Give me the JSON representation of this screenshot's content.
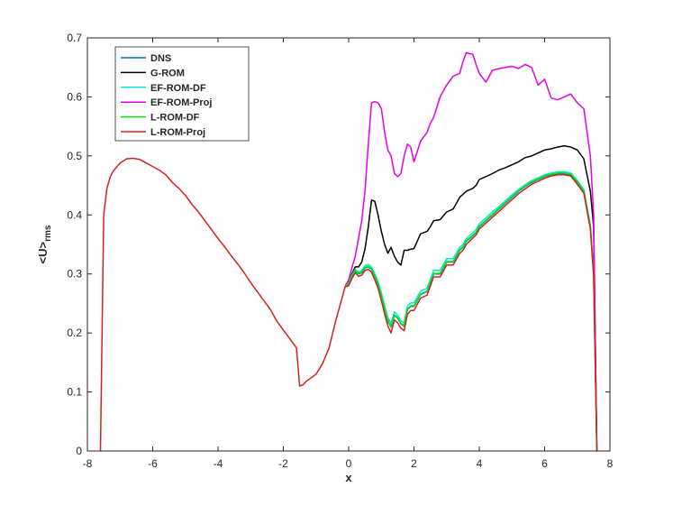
{
  "chart_data": {
    "type": "line",
    "title": "",
    "xlabel": "x",
    "ylabel": {
      "main": "<U>",
      "sub": "rms"
    },
    "xlim": [
      -8,
      8
    ],
    "ylim": [
      0,
      0.7
    ],
    "xticks": [
      -8,
      -6,
      -4,
      -2,
      0,
      2,
      4,
      6,
      8
    ],
    "yticks": [
      0,
      0.1,
      0.2,
      0.3,
      0.4,
      0.5,
      0.6,
      0.7
    ],
    "xtick_labels": [
      "-8",
      "-6",
      "-4",
      "-2",
      "0",
      "2",
      "4",
      "6",
      "8"
    ],
    "ytick_labels": [
      "0",
      "0.1",
      "0.2",
      "0.3",
      "0.4",
      "0.5",
      "0.6",
      "0.7"
    ],
    "grid": false,
    "legend_position": "top-left",
    "common": {
      "x": [
        -7.6,
        -7.5,
        -7.4,
        -7.3,
        -7.2,
        -7.0,
        -6.8,
        -6.6,
        -6.4,
        -6.2,
        -6.0,
        -5.8,
        -5.6,
        -5.4,
        -5.2,
        -5.0,
        -4.8,
        -4.6,
        -4.4,
        -4.2,
        -4.0,
        -3.8,
        -3.6,
        -3.4,
        -3.2,
        -3.0,
        -2.8,
        -2.6,
        -2.4,
        -2.2,
        -2.0,
        -1.8,
        -1.6,
        -1.5,
        -1.4,
        -1.3,
        -1.2,
        -1.0,
        -0.8,
        -0.6,
        -0.4,
        -0.2,
        -0.1
      ],
      "y": [
        0.0,
        0.4,
        0.445,
        0.465,
        0.475,
        0.488,
        0.495,
        0.496,
        0.494,
        0.488,
        0.482,
        0.476,
        0.468,
        0.455,
        0.445,
        0.433,
        0.418,
        0.405,
        0.39,
        0.375,
        0.36,
        0.346,
        0.331,
        0.317,
        0.302,
        0.285,
        0.27,
        0.255,
        0.24,
        0.22,
        0.205,
        0.19,
        0.175,
        0.11,
        0.112,
        0.118,
        0.122,
        0.13,
        0.148,
        0.175,
        0.22,
        0.26,
        0.28
      ]
    },
    "x": [
      -0.1,
      0.0,
      0.1,
      0.2,
      0.3,
      0.4,
      0.5,
      0.6,
      0.7,
      0.8,
      0.9,
      1.0,
      1.1,
      1.2,
      1.3,
      1.4,
      1.5,
      1.6,
      1.7,
      1.8,
      1.9,
      2.0,
      2.2,
      2.4,
      2.5,
      2.6,
      2.8,
      3.0,
      3.2,
      3.4,
      3.5,
      3.6,
      3.8,
      3.9,
      4.0,
      4.2,
      4.4,
      4.6,
      4.8,
      5.0,
      5.2,
      5.4,
      5.6,
      5.8,
      6.0,
      6.2,
      6.4,
      6.6,
      6.8,
      7.0,
      7.2,
      7.4,
      7.5,
      7.6
    ],
    "series": [
      {
        "name": "DNS",
        "color": "#0072bd",
        "values": [
          0.28,
          0.283,
          0.295,
          0.305,
          0.3,
          0.302,
          0.31,
          0.312,
          0.308,
          0.296,
          0.282,
          0.262,
          0.24,
          0.22,
          0.21,
          0.23,
          0.225,
          0.215,
          0.212,
          0.24,
          0.245,
          0.245,
          0.265,
          0.27,
          0.285,
          0.3,
          0.3,
          0.32,
          0.32,
          0.34,
          0.345,
          0.355,
          0.365,
          0.37,
          0.38,
          0.39,
          0.4,
          0.41,
          0.42,
          0.43,
          0.44,
          0.448,
          0.455,
          0.46,
          0.465,
          0.468,
          0.47,
          0.47,
          0.468,
          0.455,
          0.44,
          0.38,
          0.3,
          0.0
        ]
      },
      {
        "name": "G-ROM",
        "color": "#000000",
        "values": [
          0.28,
          0.285,
          0.3,
          0.312,
          0.312,
          0.32,
          0.342,
          0.38,
          0.425,
          0.423,
          0.4,
          0.372,
          0.35,
          0.335,
          0.345,
          0.33,
          0.32,
          0.315,
          0.34,
          0.34,
          0.342,
          0.343,
          0.368,
          0.372,
          0.38,
          0.39,
          0.392,
          0.405,
          0.41,
          0.43,
          0.435,
          0.44,
          0.445,
          0.45,
          0.46,
          0.465,
          0.47,
          0.476,
          0.48,
          0.485,
          0.49,
          0.497,
          0.5,
          0.505,
          0.51,
          0.512,
          0.515,
          0.517,
          0.515,
          0.51,
          0.495,
          0.44,
          0.38,
          0.0
        ]
      },
      {
        "name": "EF-ROM-DF",
        "color": "#00e5e5",
        "values": [
          0.282,
          0.285,
          0.298,
          0.308,
          0.303,
          0.306,
          0.314,
          0.316,
          0.312,
          0.3,
          0.287,
          0.268,
          0.246,
          0.226,
          0.216,
          0.236,
          0.23,
          0.22,
          0.218,
          0.246,
          0.251,
          0.251,
          0.271,
          0.276,
          0.29,
          0.306,
          0.306,
          0.326,
          0.326,
          0.345,
          0.35,
          0.36,
          0.37,
          0.375,
          0.385,
          0.395,
          0.405,
          0.414,
          0.424,
          0.434,
          0.443,
          0.451,
          0.458,
          0.463,
          0.468,
          0.471,
          0.473,
          0.473,
          0.471,
          0.458,
          0.443,
          0.383,
          0.303,
          0.0
        ]
      },
      {
        "name": "EF-ROM-Proj",
        "color": "#e600e6",
        "values": [
          0.28,
          0.29,
          0.31,
          0.33,
          0.36,
          0.39,
          0.44,
          0.52,
          0.59,
          0.592,
          0.59,
          0.58,
          0.54,
          0.51,
          0.5,
          0.47,
          0.465,
          0.47,
          0.5,
          0.52,
          0.515,
          0.49,
          0.525,
          0.54,
          0.555,
          0.565,
          0.6,
          0.62,
          0.635,
          0.64,
          0.66,
          0.675,
          0.672,
          0.655,
          0.64,
          0.625,
          0.645,
          0.648,
          0.65,
          0.652,
          0.648,
          0.655,
          0.65,
          0.62,
          0.63,
          0.598,
          0.595,
          0.6,
          0.605,
          0.59,
          0.58,
          0.5,
          0.4,
          0.0
        ]
      },
      {
        "name": "L-ROM-DF",
        "color": "#00e600",
        "values": [
          0.28,
          0.283,
          0.296,
          0.306,
          0.301,
          0.303,
          0.311,
          0.313,
          0.309,
          0.297,
          0.283,
          0.263,
          0.241,
          0.221,
          0.211,
          0.231,
          0.226,
          0.216,
          0.213,
          0.241,
          0.246,
          0.246,
          0.266,
          0.271,
          0.286,
          0.301,
          0.301,
          0.321,
          0.321,
          0.341,
          0.346,
          0.356,
          0.366,
          0.371,
          0.381,
          0.391,
          0.401,
          0.411,
          0.421,
          0.431,
          0.441,
          0.449,
          0.456,
          0.461,
          0.466,
          0.469,
          0.471,
          0.471,
          0.469,
          0.456,
          0.441,
          0.381,
          0.301,
          0.0
        ]
      },
      {
        "name": "L-ROM-Proj",
        "color": "#d62020",
        "values": [
          0.278,
          0.28,
          0.292,
          0.302,
          0.296,
          0.298,
          0.306,
          0.308,
          0.303,
          0.29,
          0.276,
          0.255,
          0.232,
          0.212,
          0.2,
          0.222,
          0.217,
          0.208,
          0.204,
          0.232,
          0.238,
          0.238,
          0.259,
          0.264,
          0.279,
          0.295,
          0.295,
          0.315,
          0.315,
          0.335,
          0.34,
          0.35,
          0.361,
          0.366,
          0.376,
          0.386,
          0.396,
          0.406,
          0.416,
          0.426,
          0.436,
          0.444,
          0.452,
          0.457,
          0.462,
          0.466,
          0.468,
          0.468,
          0.466,
          0.452,
          0.437,
          0.376,
          0.296,
          0.0
        ]
      }
    ]
  }
}
